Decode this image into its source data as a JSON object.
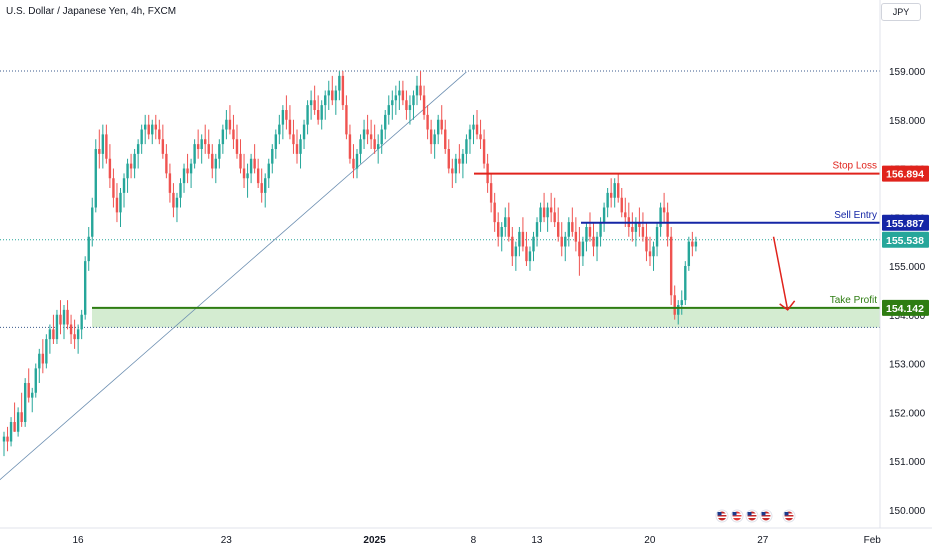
{
  "header": {
    "symbol_title": "U.S. Dollar / Japanese Yen, 4h, FXCM",
    "currency_button": "JPY"
  },
  "colors": {
    "up": "#26a69a",
    "down": "#ef5350",
    "stop_loss": "#e0231c",
    "sell_entry": "#1526a6",
    "take_profit": "#2e7d12",
    "zone_fill": "#d4ecd1",
    "axis_text": "#131722",
    "dotted": "#3a5a8c"
  },
  "chart_data": {
    "type": "candlestick",
    "title": "U.S. Dollar / Japanese Yen, 4h, FXCM",
    "ylim": [
      149.75,
      160.4
    ],
    "y_ticks": [
      "159.000",
      "158.000",
      "157.000",
      "156.000",
      "155.000",
      "154.000",
      "153.000",
      "152.000",
      "151.000",
      "150.000"
    ],
    "x_ticks": [
      {
        "label": "16",
        "index": 0
      },
      {
        "label": "23",
        "index": 42
      },
      {
        "label": "2025",
        "index": 84
      },
      {
        "label": "8",
        "index": 112
      },
      {
        "label": "13",
        "index": 130
      },
      {
        "label": "20",
        "index": 162
      },
      {
        "label": "27",
        "index": 194
      },
      {
        "label": "Feb",
        "index": 225
      }
    ],
    "candles": [
      [
        151.4,
        151.6,
        151.1,
        151.5
      ],
      [
        151.5,
        151.7,
        151.2,
        151.4
      ],
      [
        151.4,
        151.9,
        151.3,
        151.8
      ],
      [
        151.8,
        152.2,
        151.6,
        151.6
      ],
      [
        151.6,
        152.1,
        151.5,
        152.0
      ],
      [
        152.0,
        152.4,
        151.7,
        151.8
      ],
      [
        151.8,
        152.7,
        151.7,
        152.6
      ],
      [
        152.6,
        152.9,
        152.2,
        152.3
      ],
      [
        152.3,
        152.5,
        152.0,
        152.4
      ],
      [
        152.4,
        153.0,
        152.3,
        152.9
      ],
      [
        152.9,
        153.3,
        152.6,
        153.2
      ],
      [
        153.2,
        153.5,
        152.8,
        153.0
      ],
      [
        153.0,
        153.6,
        152.9,
        153.5
      ],
      [
        153.5,
        153.8,
        153.2,
        153.7
      ],
      [
        153.7,
        154.0,
        153.4,
        153.5
      ],
      [
        153.5,
        154.1,
        153.4,
        154.0
      ],
      [
        154.0,
        154.3,
        153.6,
        153.8
      ],
      [
        153.8,
        154.2,
        153.5,
        154.1
      ],
      [
        154.1,
        154.3,
        153.7,
        153.8
      ],
      [
        153.8,
        154.0,
        153.4,
        153.6
      ],
      [
        153.6,
        153.9,
        153.3,
        153.5
      ],
      [
        153.5,
        153.8,
        153.2,
        153.7
      ],
      [
        153.7,
        154.1,
        153.5,
        154.0
      ],
      [
        154.0,
        155.2,
        153.9,
        155.1
      ],
      [
        155.1,
        155.8,
        154.9,
        155.6
      ],
      [
        155.6,
        156.4,
        155.4,
        156.2
      ],
      [
        156.2,
        157.6,
        156.1,
        157.4
      ],
      [
        157.4,
        157.8,
        157.0,
        157.3
      ],
      [
        157.3,
        157.9,
        157.0,
        157.7
      ],
      [
        157.7,
        157.9,
        157.1,
        157.2
      ],
      [
        157.2,
        157.5,
        156.6,
        156.8
      ],
      [
        156.8,
        157.0,
        156.2,
        156.4
      ],
      [
        156.4,
        156.7,
        155.9,
        156.1
      ],
      [
        156.1,
        156.6,
        155.8,
        156.5
      ],
      [
        156.5,
        156.9,
        156.2,
        156.8
      ],
      [
        156.8,
        157.2,
        156.5,
        157.1
      ],
      [
        157.1,
        157.3,
        156.8,
        157.0
      ],
      [
        157.0,
        157.4,
        156.8,
        157.3
      ],
      [
        157.3,
        157.6,
        157.0,
        157.5
      ],
      [
        157.5,
        157.9,
        157.3,
        157.8
      ],
      [
        157.8,
        158.1,
        157.5,
        157.9
      ],
      [
        157.9,
        158.1,
        157.6,
        157.7
      ],
      [
        157.7,
        158.0,
        157.5,
        157.9
      ],
      [
        157.9,
        158.1,
        157.6,
        157.8
      ],
      [
        157.8,
        158.0,
        157.5,
        157.6
      ],
      [
        157.6,
        157.9,
        157.2,
        157.3
      ],
      [
        157.3,
        157.5,
        156.8,
        156.9
      ],
      [
        156.9,
        157.1,
        156.3,
        156.5
      ],
      [
        156.5,
        156.7,
        156.0,
        156.2
      ],
      [
        156.2,
        156.5,
        155.9,
        156.4
      ],
      [
        156.4,
        156.8,
        156.2,
        156.7
      ],
      [
        156.7,
        157.1,
        156.5,
        157.0
      ],
      [
        157.0,
        157.3,
        156.7,
        156.9
      ],
      [
        156.9,
        157.2,
        156.6,
        157.1
      ],
      [
        157.1,
        157.6,
        157.0,
        157.5
      ],
      [
        157.5,
        157.8,
        157.2,
        157.4
      ],
      [
        157.4,
        157.7,
        157.1,
        157.6
      ],
      [
        157.6,
        157.9,
        157.3,
        157.5
      ],
      [
        157.5,
        157.8,
        157.2,
        157.3
      ],
      [
        157.3,
        157.5,
        156.8,
        157.0
      ],
      [
        157.0,
        157.3,
        156.7,
        157.2
      ],
      [
        157.2,
        157.6,
        157.0,
        157.5
      ],
      [
        157.5,
        157.9,
        157.3,
        157.8
      ],
      [
        157.8,
        158.2,
        157.6,
        158.0
      ],
      [
        158.0,
        158.3,
        157.7,
        157.8
      ],
      [
        157.8,
        158.1,
        157.4,
        157.6
      ],
      [
        157.6,
        157.9,
        157.2,
        157.3
      ],
      [
        157.3,
        157.6,
        156.9,
        157.0
      ],
      [
        157.0,
        157.3,
        156.6,
        156.8
      ],
      [
        156.8,
        157.1,
        156.4,
        156.9
      ],
      [
        156.9,
        157.3,
        156.7,
        157.2
      ],
      [
        157.2,
        157.5,
        156.9,
        157.0
      ],
      [
        157.0,
        157.2,
        156.6,
        156.7
      ],
      [
        156.7,
        157.0,
        156.3,
        156.5
      ],
      [
        156.5,
        156.9,
        156.2,
        156.8
      ],
      [
        156.8,
        157.2,
        156.6,
        157.1
      ],
      [
        157.1,
        157.5,
        156.9,
        157.4
      ],
      [
        157.4,
        157.8,
        157.2,
        157.7
      ],
      [
        157.7,
        158.1,
        157.5,
        157.9
      ],
      [
        157.9,
        158.3,
        157.6,
        158.2
      ],
      [
        158.2,
        158.5,
        157.8,
        158.0
      ],
      [
        158.0,
        158.3,
        157.6,
        157.7
      ],
      [
        157.7,
        158.0,
        157.3,
        157.5
      ],
      [
        157.5,
        157.8,
        157.1,
        157.3
      ],
      [
        157.3,
        157.7,
        157.0,
        157.6
      ],
      [
        157.6,
        158.0,
        157.4,
        157.9
      ],
      [
        157.9,
        158.4,
        157.7,
        158.3
      ],
      [
        158.3,
        158.6,
        158.0,
        158.4
      ],
      [
        158.4,
        158.7,
        158.1,
        158.2
      ],
      [
        158.2,
        158.5,
        157.9,
        158.0
      ],
      [
        158.0,
        158.4,
        157.8,
        158.3
      ],
      [
        158.3,
        158.6,
        158.0,
        158.5
      ],
      [
        158.5,
        158.8,
        158.2,
        158.6
      ],
      [
        158.6,
        158.9,
        158.3,
        158.4
      ],
      [
        158.4,
        158.7,
        158.1,
        158.6
      ],
      [
        158.6,
        159.0,
        158.4,
        158.9
      ],
      [
        158.9,
        159.0,
        158.2,
        158.3
      ],
      [
        158.3,
        158.5,
        157.6,
        157.7
      ],
      [
        157.7,
        157.9,
        157.1,
        157.2
      ],
      [
        157.2,
        157.5,
        156.8,
        157.0
      ],
      [
        157.0,
        157.4,
        156.8,
        157.3
      ],
      [
        157.3,
        157.7,
        157.1,
        157.6
      ],
      [
        157.6,
        158.0,
        157.4,
        157.8
      ],
      [
        157.8,
        158.1,
        157.5,
        157.7
      ],
      [
        157.7,
        158.0,
        157.4,
        157.6
      ],
      [
        157.6,
        157.9,
        157.3,
        157.4
      ],
      [
        157.4,
        157.7,
        157.1,
        157.5
      ],
      [
        157.5,
        157.9,
        157.3,
        157.8
      ],
      [
        157.8,
        158.2,
        157.6,
        158.1
      ],
      [
        158.1,
        158.5,
        157.9,
        158.3
      ],
      [
        158.3,
        158.6,
        158.0,
        158.4
      ],
      [
        158.4,
        158.7,
        158.1,
        158.5
      ],
      [
        158.5,
        158.8,
        158.2,
        158.6
      ],
      [
        158.6,
        158.8,
        158.3,
        158.4
      ],
      [
        158.4,
        158.6,
        158.0,
        158.2
      ],
      [
        158.2,
        158.5,
        157.9,
        158.3
      ],
      [
        158.3,
        158.6,
        158.0,
        158.5
      ],
      [
        158.5,
        158.9,
        158.3,
        158.7
      ],
      [
        158.7,
        159.0,
        158.4,
        158.5
      ],
      [
        158.5,
        158.7,
        158.0,
        158.1
      ],
      [
        158.1,
        158.3,
        157.6,
        157.8
      ],
      [
        157.8,
        158.0,
        157.3,
        157.5
      ],
      [
        157.5,
        157.8,
        157.2,
        157.7
      ],
      [
        157.7,
        158.1,
        157.5,
        158.0
      ],
      [
        158.0,
        158.3,
        157.7,
        157.8
      ],
      [
        157.8,
        158.0,
        157.3,
        157.4
      ],
      [
        157.4,
        157.6,
        156.9,
        157.0
      ],
      [
        157.0,
        157.2,
        156.6,
        156.9
      ],
      [
        156.9,
        157.3,
        156.7,
        157.2
      ],
      [
        157.2,
        157.5,
        156.9,
        157.1
      ],
      [
        157.1,
        157.4,
        156.8,
        157.3
      ],
      [
        157.3,
        157.7,
        157.1,
        157.6
      ],
      [
        157.6,
        157.9,
        157.3,
        157.8
      ],
      [
        157.8,
        158.1,
        157.5,
        157.9
      ],
      [
        157.9,
        158.2,
        157.6,
        157.7
      ],
      [
        157.7,
        158.0,
        157.4,
        157.6
      ],
      [
        157.6,
        157.8,
        157.0,
        157.1
      ],
      [
        157.1,
        157.3,
        156.5,
        156.7
      ],
      [
        156.7,
        156.9,
        156.1,
        156.3
      ],
      [
        156.3,
        156.5,
        155.7,
        155.9
      ],
      [
        155.9,
        156.1,
        155.4,
        155.6
      ],
      [
        155.6,
        155.9,
        155.3,
        155.8
      ],
      [
        155.8,
        156.2,
        155.6,
        156.0
      ],
      [
        156.0,
        156.3,
        155.5,
        155.6
      ],
      [
        155.6,
        155.8,
        155.0,
        155.2
      ],
      [
        155.2,
        155.5,
        154.9,
        155.4
      ],
      [
        155.4,
        155.8,
        155.2,
        155.7
      ],
      [
        155.7,
        156.0,
        155.3,
        155.4
      ],
      [
        155.4,
        155.7,
        155.0,
        155.1
      ],
      [
        155.1,
        155.4,
        154.9,
        155.3
      ],
      [
        155.3,
        155.7,
        155.1,
        155.6
      ],
      [
        155.6,
        156.0,
        155.4,
        155.9
      ],
      [
        155.9,
        156.3,
        155.7,
        156.2
      ],
      [
        156.2,
        156.5,
        155.9,
        156.0
      ],
      [
        156.0,
        156.3,
        155.7,
        156.2
      ],
      [
        156.2,
        156.5,
        155.9,
        156.1
      ],
      [
        156.1,
        156.4,
        155.8,
        155.9
      ],
      [
        155.9,
        156.2,
        155.5,
        155.6
      ],
      [
        155.6,
        155.9,
        155.2,
        155.4
      ],
      [
        155.4,
        155.7,
        155.1,
        155.6
      ],
      [
        155.6,
        156.0,
        155.4,
        155.9
      ],
      [
        155.9,
        156.2,
        155.6,
        155.7
      ],
      [
        155.7,
        156.0,
        155.3,
        155.5
      ],
      [
        155.5,
        155.8,
        154.8,
        155.2
      ],
      [
        155.2,
        155.6,
        155.0,
        155.5
      ],
      [
        155.5,
        155.9,
        155.3,
        155.8
      ],
      [
        155.8,
        156.1,
        155.5,
        155.6
      ],
      [
        155.6,
        155.9,
        155.2,
        155.4
      ],
      [
        155.4,
        155.7,
        155.1,
        155.6
      ],
      [
        155.6,
        156.0,
        155.4,
        155.9
      ],
      [
        155.9,
        156.3,
        155.7,
        156.2
      ],
      [
        156.2,
        156.6,
        156.0,
        156.5
      ],
      [
        156.5,
        156.8,
        156.2,
        156.4
      ],
      [
        156.4,
        156.8,
        156.2,
        156.7
      ],
      [
        156.7,
        156.9,
        156.3,
        156.4
      ],
      [
        156.4,
        156.6,
        156.0,
        156.1
      ],
      [
        156.1,
        156.4,
        155.8,
        156.0
      ],
      [
        156.0,
        156.3,
        155.6,
        155.8
      ],
      [
        155.8,
        156.1,
        155.5,
        155.7
      ],
      [
        155.7,
        156.0,
        155.4,
        155.9
      ],
      [
        155.9,
        156.2,
        155.6,
        155.8
      ],
      [
        155.8,
        156.1,
        155.5,
        155.6
      ],
      [
        155.6,
        155.9,
        155.1,
        155.3
      ],
      [
        155.3,
        155.6,
        155.0,
        155.2
      ],
      [
        155.2,
        155.5,
        154.9,
        155.4
      ],
      [
        155.4,
        155.9,
        155.2,
        155.8
      ],
      [
        155.8,
        156.3,
        155.6,
        156.2
      ],
      [
        156.2,
        156.5,
        155.9,
        156.1
      ],
      [
        156.1,
        156.3,
        155.4,
        155.6
      ],
      [
        155.6,
        155.8,
        154.2,
        154.4
      ],
      [
        154.4,
        154.6,
        153.9,
        154.0
      ],
      [
        154.0,
        154.3,
        153.8,
        154.2
      ],
      [
        154.2,
        154.5,
        154.0,
        154.3
      ],
      [
        154.3,
        155.1,
        154.2,
        155.0
      ],
      [
        155.0,
        155.6,
        154.9,
        155.5
      ],
      [
        155.5,
        155.7,
        155.2,
        155.4
      ],
      [
        155.4,
        155.6,
        155.3,
        155.5
      ]
    ],
    "horizontal_levels": [
      {
        "name": "Stop Loss",
        "value": 156.894,
        "label": "156.894"
      },
      {
        "name": "Sell Entry",
        "value": 155.887,
        "label": "155.887"
      },
      {
        "name": "Take Profit",
        "value": 154.142,
        "label": "154.142"
      }
    ],
    "current_price": {
      "value": 155.538,
      "label": "155.538"
    },
    "support_zone": [
      153.74,
      154.142
    ],
    "dotted_levels": [
      159.0,
      153.74
    ],
    "trendline": {
      "from": {
        "index": -3,
        "price": 150.5
      },
      "to": {
        "index": 131,
        "price": 158.98
      }
    },
    "arrow": {
      "from_index": 218,
      "from_price": 155.6,
      "to_index": 222,
      "to_price": 154.1
    }
  }
}
